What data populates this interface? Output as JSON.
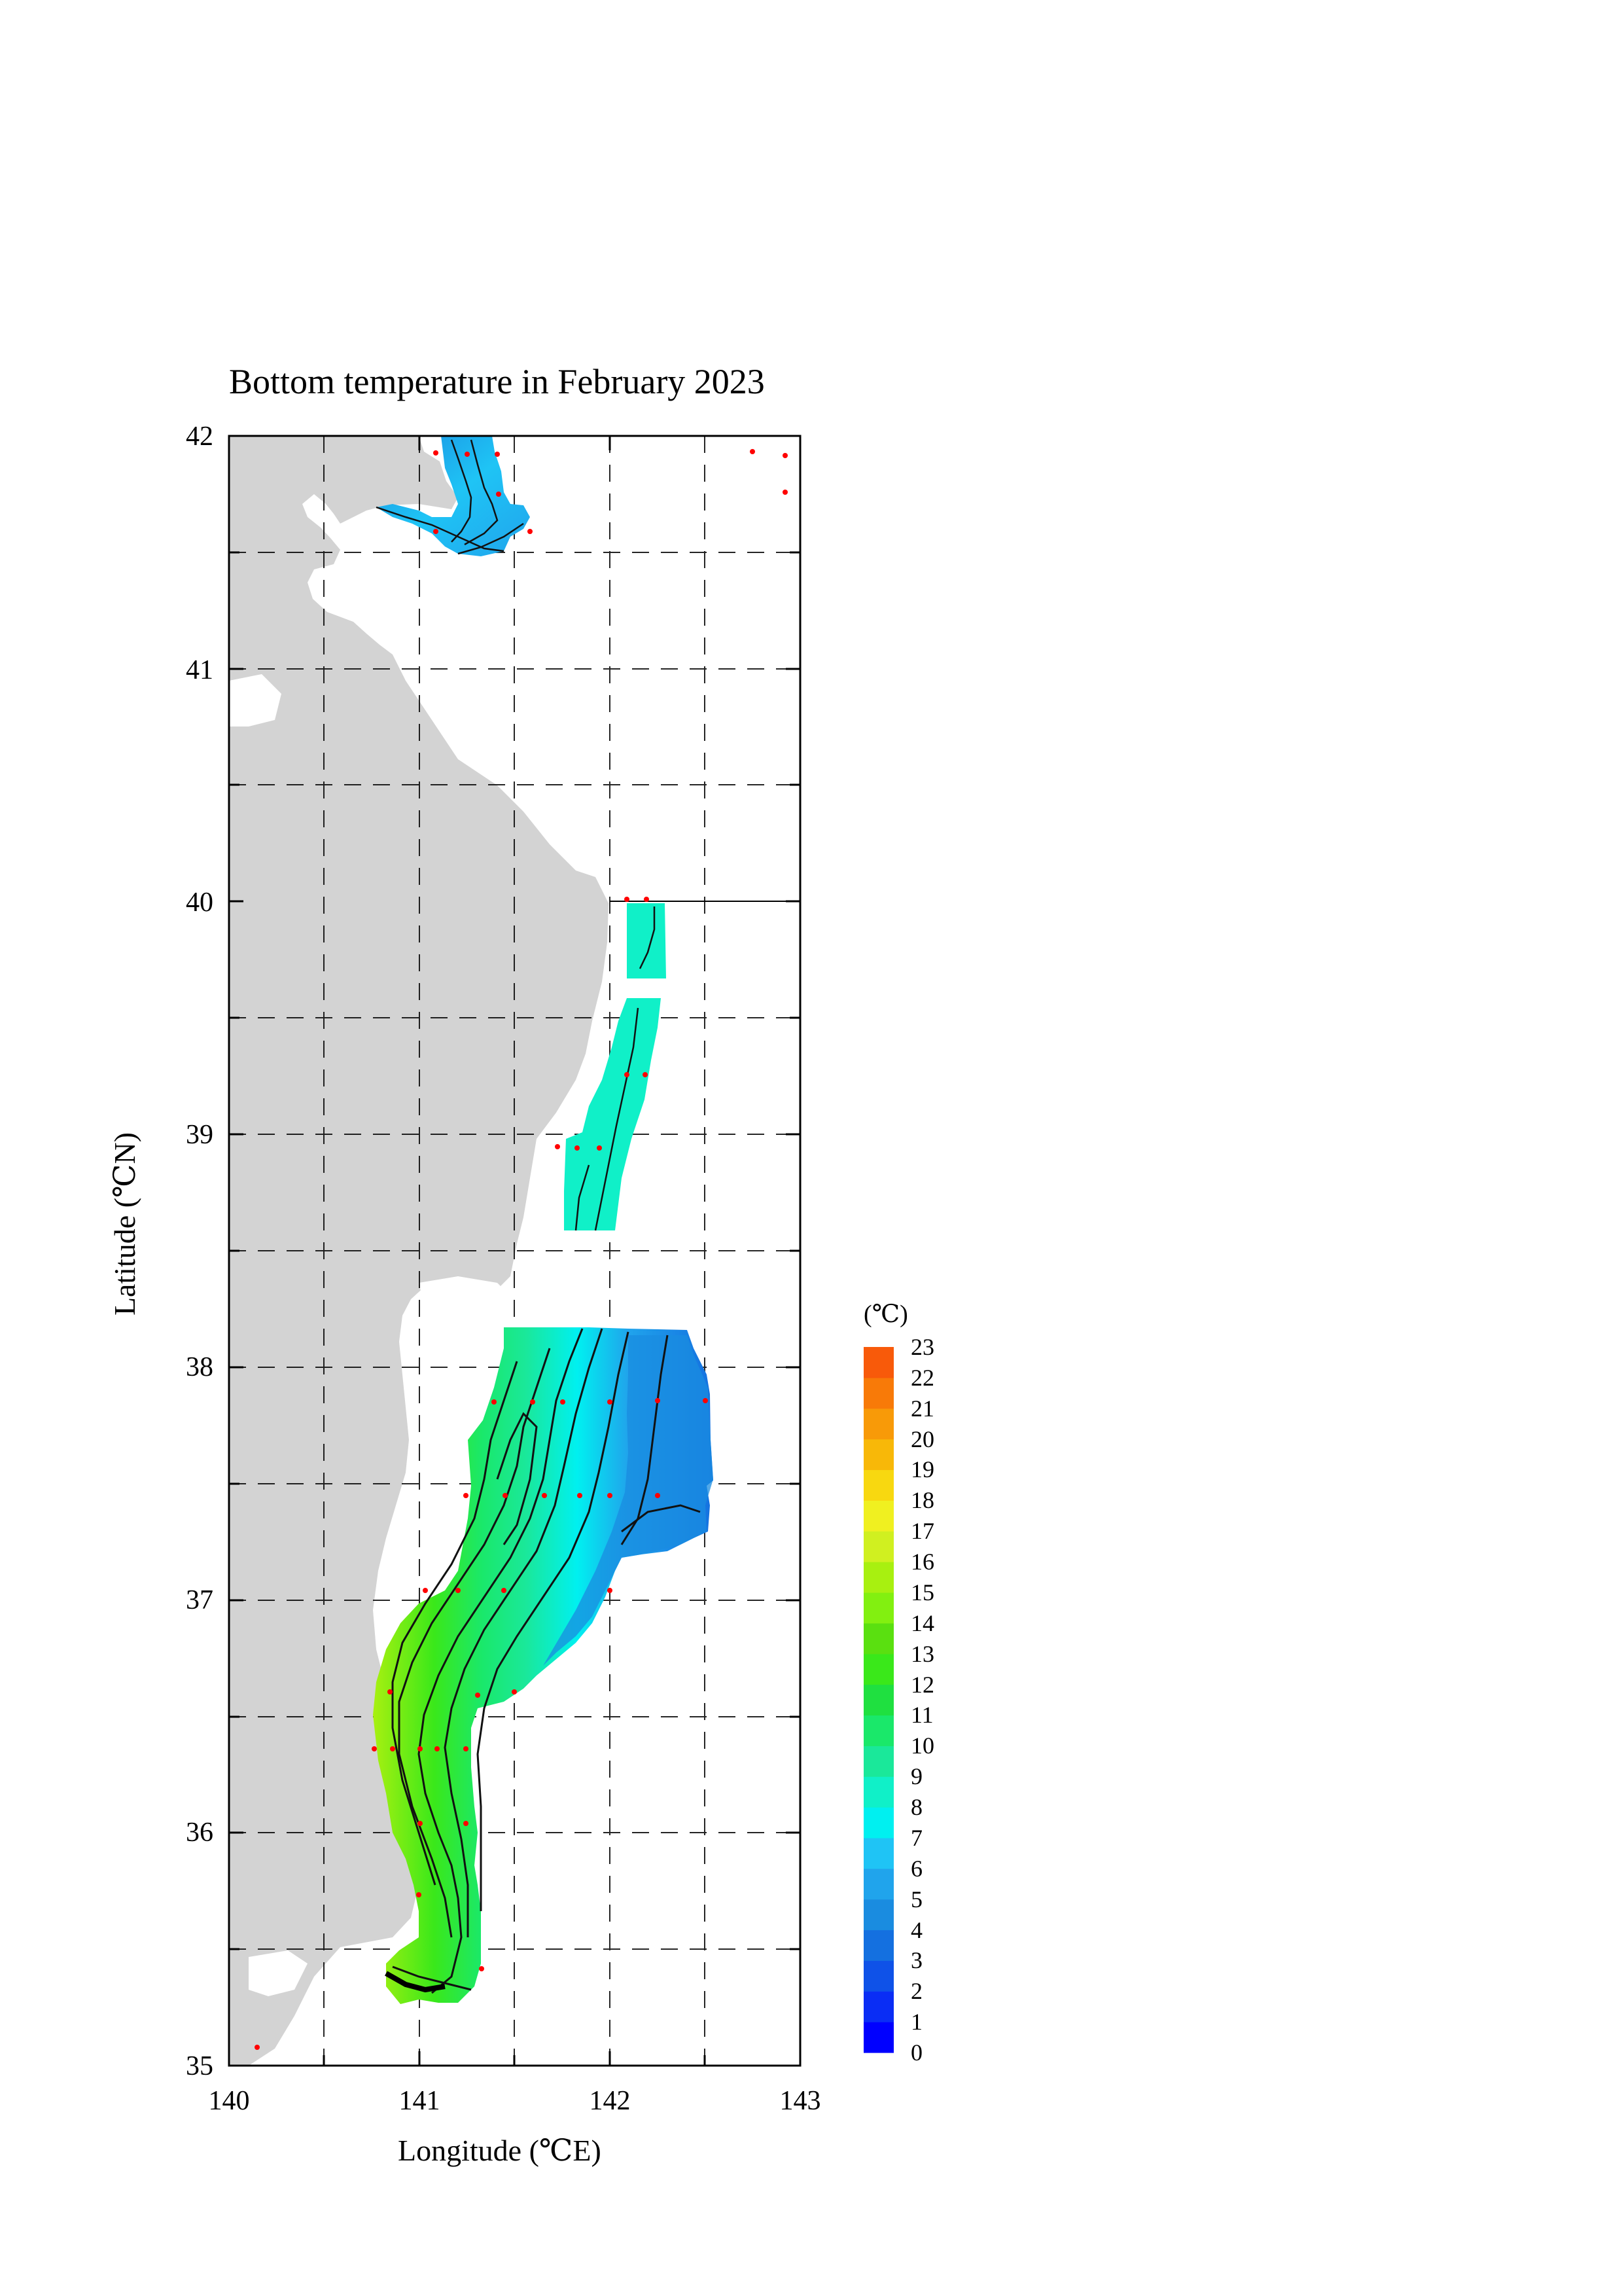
{
  "map": {
    "title": "Bottom temperature in February 2023",
    "x_axis": {
      "label": "Longitude (℃E)",
      "range": [
        140,
        143
      ],
      "ticks": [
        "140",
        "141",
        "142",
        "143"
      ]
    },
    "y_axis": {
      "label": "Latitude (℃N)",
      "range": [
        35,
        42
      ],
      "ticks": [
        "35",
        "36",
        "37",
        "38",
        "39",
        "40",
        "41",
        "42"
      ]
    },
    "grid": "dashed, every 0.5 degree",
    "land_color": "#d3d3d3",
    "station_color": "#ff0000"
  },
  "colorbar": {
    "unit": "(℃)",
    "min": 0,
    "max": 23,
    "labels": [
      "0",
      "1",
      "2",
      "3",
      "4",
      "5",
      "6",
      "7",
      "8",
      "9",
      "10",
      "11",
      "12",
      "13",
      "14",
      "15",
      "16",
      "17",
      "18",
      "19",
      "20",
      "21",
      "22",
      "23"
    ],
    "colors": [
      "#0000ff",
      "#0a2df5",
      "#0f52e8",
      "#1470e0",
      "#1a8ce0",
      "#20a4ec",
      "#1fc4f5",
      "#00f0f0",
      "#10f0c8",
      "#1ae89a",
      "#1ae86a",
      "#1fe040",
      "#3ae81a",
      "#5ae010",
      "#82f010",
      "#a8f010",
      "#d0f020",
      "#f0f020",
      "#f8d810",
      "#f8b808",
      "#f89a08",
      "#f87a08",
      "#f85a0a"
    ]
  }
}
